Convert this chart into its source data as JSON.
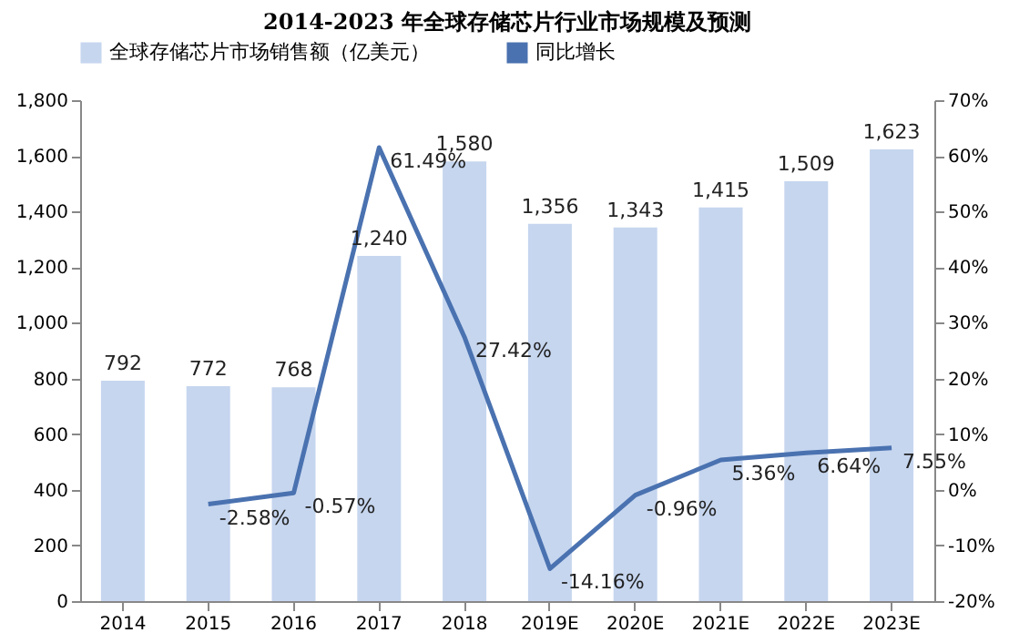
{
  "chart_data": {
    "type": "bar",
    "title": "2014-2023 年全球存储芯片行业市场规模及预测",
    "categories": [
      "2014",
      "2015",
      "2016",
      "2017",
      "2018",
      "2019E",
      "2020E",
      "2021E",
      "2022E",
      "2023E"
    ],
    "series": [
      {
        "name": "全球存储芯片市场销售额（亿美元）",
        "color": "#c6d6ef",
        "values": [
          792,
          772,
          768,
          1240,
          1580,
          1356,
          1343,
          1415,
          1509,
          1623
        ],
        "value_labels": [
          "792",
          "772",
          "768",
          "1,240",
          "1,580",
          "1,356",
          "1,343",
          "1,415",
          "1,509",
          "1,623"
        ]
      },
      {
        "name": "同比增长",
        "type": "line",
        "axis": "y2",
        "color": "#4a72b0",
        "values": [
          null,
          -2.58,
          -0.57,
          61.49,
          27.42,
          -14.16,
          -0.96,
          5.36,
          6.64,
          7.55
        ],
        "value_labels": [
          null,
          "-2.58%",
          "-0.57%",
          "61.49%",
          "27.42%",
          "-14.16%",
          "-0.96%",
          "5.36%",
          "6.64%",
          "7.55%"
        ]
      }
    ],
    "ylim": [
      0,
      1800
    ],
    "yticks": [
      0,
      200,
      400,
      600,
      800,
      {
        "value": 1000,
        "label": "1,000"
      },
      {
        "value": 1200,
        "label": "1,200"
      },
      {
        "value": 1400,
        "label": "1,400"
      },
      {
        "value": 1600,
        "label": "1,600"
      },
      {
        "value": 1800,
        "label": "1,800"
      }
    ],
    "y2lim": [
      -20,
      70
    ],
    "y2ticks": [
      {
        "value": -20,
        "label": "-20%"
      },
      {
        "value": -10,
        "label": "-10%"
      },
      {
        "value": 0,
        "label": "0%"
      },
      {
        "value": 10,
        "label": "10%"
      },
      {
        "value": 20,
        "label": "20%"
      },
      {
        "value": 30,
        "label": "30%"
      },
      {
        "value": 40,
        "label": "40%"
      },
      {
        "value": 50,
        "label": "50%"
      },
      {
        "value": 60,
        "label": "60%"
      },
      {
        "value": 70,
        "label": "70%"
      }
    ],
    "grid": false,
    "legend": "top",
    "marker": "none",
    "line_style": "solid"
  }
}
